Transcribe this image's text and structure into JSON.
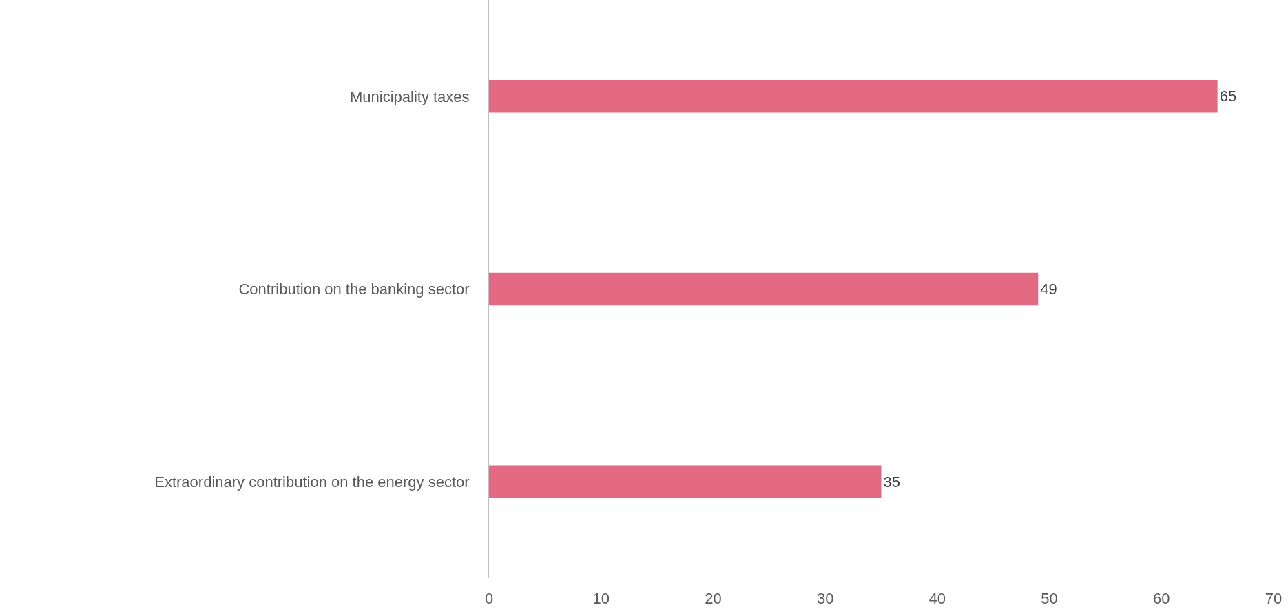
{
  "chart_data": {
    "type": "bar",
    "orientation": "horizontal",
    "categories": [
      "Municipality taxes",
      "Contribution on the banking sector",
      "Extraordinary contribution on the energy sector"
    ],
    "values": [
      65,
      49,
      35
    ],
    "color": "#e36a82",
    "data_labels": true,
    "xlim": [
      0,
      70
    ],
    "xticks": [
      0,
      10,
      20,
      30,
      40,
      50,
      60,
      70
    ],
    "grid": false
  }
}
